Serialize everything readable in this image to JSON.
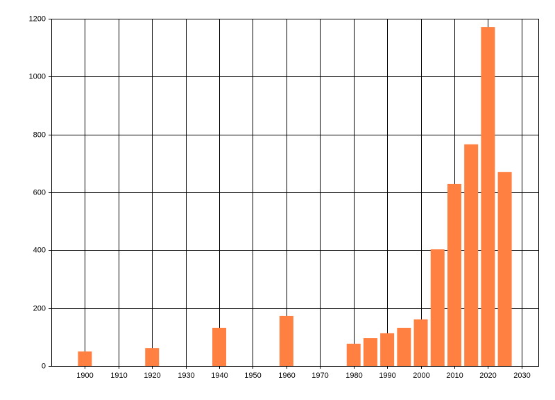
{
  "chart_data": {
    "type": "bar",
    "x": [
      1900,
      1920,
      1940,
      1960,
      1980,
      1985,
      1990,
      1995,
      2000,
      2005,
      2010,
      2015,
      2020,
      2025
    ],
    "values": [
      50,
      62,
      132,
      173,
      77,
      96,
      113,
      132,
      161,
      403,
      629,
      766,
      1171,
      670
    ],
    "color": "#ff8040",
    "xlim": [
      1890,
      2035
    ],
    "xticks": [
      1900,
      1910,
      1920,
      1930,
      1940,
      1950,
      1960,
      1970,
      1980,
      1990,
      2000,
      2010,
      2020,
      2030
    ],
    "ylim": [
      0,
      1200
    ],
    "yticks": [
      0,
      200,
      400,
      600,
      800,
      1000,
      1200
    ],
    "grid": true
  }
}
